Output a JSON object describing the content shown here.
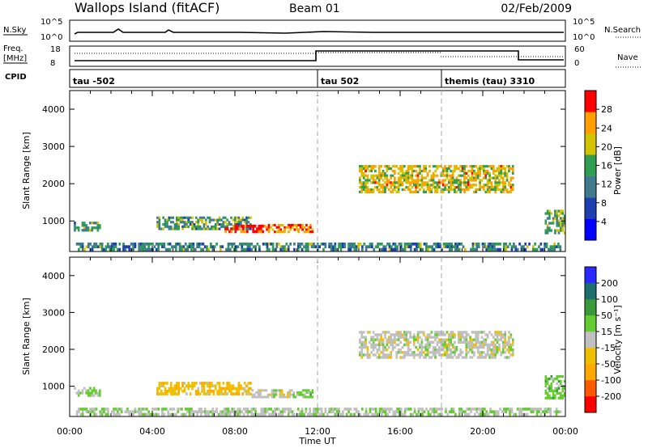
{
  "header": {
    "station": "Wallops Island (fitACF)",
    "beam": "Beam 01",
    "date": "02/Feb/2009"
  },
  "summary_panels": {
    "nsky": {
      "label": "N.Sky",
      "ticks": [
        "10^5",
        "10^0"
      ]
    },
    "nsearch": {
      "label": "N.Search",
      "ticks": [
        "10^5",
        "10^0"
      ]
    },
    "freq": {
      "label_line1": "Freq.",
      "label_line2": "[MHz]",
      "ticks": [
        "18",
        "8"
      ]
    },
    "nave": {
      "label": "Nave",
      "ticks": [
        "60",
        "0"
      ]
    },
    "cpid": {
      "label": "CPID",
      "segments": [
        {
          "name": "tau -502",
          "start_hour": 0
        },
        {
          "name": "tau 502",
          "start_hour": 12
        },
        {
          "name": "themis (tau) 3310",
          "start_hour": 18
        }
      ]
    }
  },
  "x_axis": {
    "label": "Time UT",
    "tick_labels": [
      "00:00",
      "04:00",
      "08:00",
      "12:00",
      "16:00",
      "20:00",
      "00:00"
    ]
  },
  "chart_data": [
    {
      "type": "heatmap",
      "title": "",
      "xlabel": "Time UT",
      "ylabel": "Slant Range [km]",
      "xlim": [
        0,
        24
      ],
      "ylim": [
        180,
        4500
      ],
      "y_tick_labels": [
        "1000",
        "2000",
        "3000",
        "4000"
      ],
      "y_tick_values": [
        1000,
        2000,
        3000,
        4000
      ],
      "colorbar": {
        "label": "Power [dB]",
        "tick_labels": [
          "4",
          "8",
          "12",
          "16",
          "20",
          "24",
          "28"
        ],
        "range": [
          0,
          30
        ],
        "colors": [
          "#0000ff",
          "#1d3fb0",
          "#3f7a8f",
          "#2f9e52",
          "#d3c300",
          "#ff9f00",
          "#ff0000"
        ]
      },
      "echo_regions": [
        {
          "name": "near-range ground scatter",
          "start_hour": 0.3,
          "end_hour": 23.8,
          "range_min_km": 200,
          "range_max_km": 420,
          "power_db": 12
        },
        {
          "name": "early patch",
          "start_hour": 0.2,
          "end_hour": 1.5,
          "range_min_km": 720,
          "range_max_km": 980,
          "power_db": 14
        },
        {
          "name": "pre-noon band",
          "start_hour": 4.2,
          "end_hour": 8.8,
          "range_min_km": 760,
          "range_max_km": 1120,
          "power_db": 14
        },
        {
          "name": "morning echo peak",
          "start_hour": 7.5,
          "end_hour": 9.5,
          "range_min_km": 680,
          "range_max_km": 900,
          "power_db": 28
        },
        {
          "name": "late-morning echo",
          "start_hour": 9.5,
          "end_hour": 11.8,
          "range_min_km": 680,
          "range_max_km": 920,
          "power_db": 24
        },
        {
          "name": "afternoon band",
          "start_hour": 14.0,
          "end_hour": 21.5,
          "range_min_km": 1750,
          "range_max_km": 2500,
          "power_db": 20
        },
        {
          "name": "late returns",
          "start_hour": 23.0,
          "end_hour": 24.0,
          "range_min_km": 650,
          "range_max_km": 1300,
          "power_db": 16
        }
      ]
    },
    {
      "type": "heatmap",
      "title": "",
      "xlabel": "Time UT",
      "ylabel": "Slant Range [km]",
      "xlim": [
        0,
        24
      ],
      "ylim": [
        180,
        4500
      ],
      "y_tick_labels": [
        "1000",
        "2000",
        "3000",
        "4000"
      ],
      "y_tick_values": [
        1000,
        2000,
        3000,
        4000
      ],
      "colorbar": {
        "label": "Velocity [m s⁻¹]",
        "tick_labels": [
          "-200",
          "-100",
          "-50",
          "-15",
          "15",
          "50",
          "100",
          "200"
        ],
        "range": [
          -250,
          250
        ],
        "colors": [
          "#ff0000",
          "#ff5a00",
          "#ffa800",
          "#f0c000",
          "#c0c0c0",
          "#66cc33",
          "#3a9a3a",
          "#1d6f6f",
          "#2a2aff"
        ]
      },
      "echo_regions": [
        {
          "name": "near-range scatter",
          "start_hour": 0.3,
          "end_hour": 23.8,
          "range_min_km": 200,
          "range_max_km": 420,
          "velocity_ms": 20
        },
        {
          "name": "early patch",
          "start_hour": 0.2,
          "end_hour": 1.5,
          "range_min_km": 720,
          "range_max_km": 980,
          "velocity_ms": 40
        },
        {
          "name": "pre-noon band",
          "start_hour": 4.2,
          "end_hour": 8.8,
          "range_min_km": 760,
          "range_max_km": 1120,
          "velocity_ms": -60
        },
        {
          "name": "ground scatter midday",
          "start_hour": 8.8,
          "end_hour": 10.8,
          "range_min_km": 680,
          "range_max_km": 920,
          "velocity_ms": 0
        },
        {
          "name": "pre-noon green",
          "start_hour": 10.8,
          "end_hour": 11.8,
          "range_min_km": 680,
          "range_max_km": 920,
          "velocity_ms": 50
        },
        {
          "name": "afternoon ground scatter",
          "start_hour": 14.0,
          "end_hour": 21.5,
          "range_min_km": 1750,
          "range_max_km": 2500,
          "velocity_ms": 0
        },
        {
          "name": "late returns",
          "start_hour": 23.0,
          "end_hour": 24.0,
          "range_min_km": 650,
          "range_max_km": 1300,
          "velocity_ms": 60
        }
      ]
    }
  ]
}
